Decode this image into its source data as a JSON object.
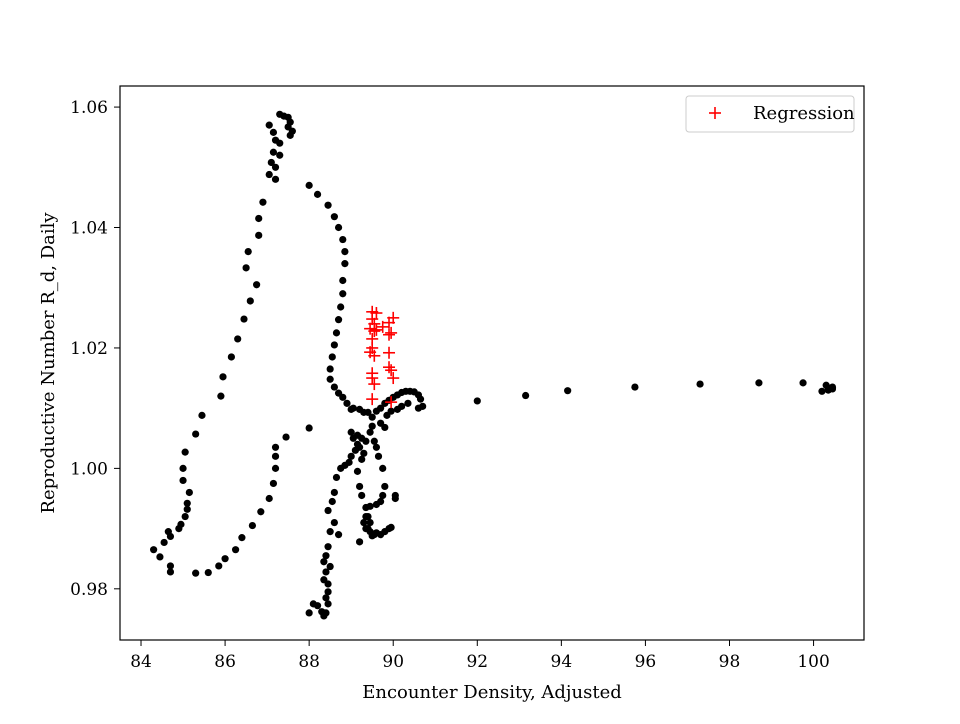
{
  "chart_data": {
    "type": "scatter",
    "xlabel": "Encounter Density, Adjusted",
    "ylabel": "Reproductive Number R_d, Daily",
    "xlim": [
      83.5,
      101.2
    ],
    "ylim": [
      0.9715,
      1.0635
    ],
    "xticks": [
      84,
      86,
      88,
      90,
      92,
      94,
      96,
      98,
      100
    ],
    "yticks": [
      0.98,
      1.0,
      1.02,
      1.04,
      1.06
    ],
    "ytick_labels": [
      "0.98",
      "1.00",
      "1.02",
      "1.04",
      "1.06"
    ],
    "grid": false,
    "legend_position": "top-right",
    "series": [
      {
        "marker": "dot",
        "color": "#000000",
        "points": [
          [
            87.3,
            1.0588
          ],
          [
            87.4,
            1.0585
          ],
          [
            87.5,
            1.0583
          ],
          [
            87.55,
            1.0575
          ],
          [
            87.5,
            1.0567
          ],
          [
            87.6,
            1.056
          ],
          [
            87.55,
            1.0553
          ],
          [
            87.05,
            1.057
          ],
          [
            87.15,
            1.0558
          ],
          [
            87.2,
            1.0545
          ],
          [
            87.3,
            1.054
          ],
          [
            87.15,
            1.0525
          ],
          [
            87.3,
            1.052
          ],
          [
            87.1,
            1.0508
          ],
          [
            87.2,
            1.05
          ],
          [
            87.05,
            1.0488
          ],
          [
            87.2,
            1.048
          ],
          [
            86.9,
            1.0442
          ],
          [
            86.8,
            1.0415
          ],
          [
            86.8,
            1.0387
          ],
          [
            86.55,
            1.036
          ],
          [
            86.5,
            1.0333
          ],
          [
            86.75,
            1.0305
          ],
          [
            86.6,
            1.0278
          ],
          [
            86.45,
            1.0248
          ],
          [
            86.3,
            1.0215
          ],
          [
            86.15,
            1.0185
          ],
          [
            85.95,
            1.0152
          ],
          [
            85.9,
            1.012
          ],
          [
            85.45,
            1.0088
          ],
          [
            85.3,
            1.0057
          ],
          [
            85.05,
            1.0027
          ],
          [
            85.0,
            1.0
          ],
          [
            85.0,
            0.998
          ],
          [
            85.15,
            0.996
          ],
          [
            85.1,
            0.9942
          ],
          [
            85.1,
            0.9932
          ],
          [
            85.05,
            0.992
          ],
          [
            84.95,
            0.9907
          ],
          [
            84.9,
            0.99
          ],
          [
            84.65,
            0.9895
          ],
          [
            84.7,
            0.9887
          ],
          [
            84.55,
            0.9877
          ],
          [
            84.3,
            0.9865
          ],
          [
            84.45,
            0.9853
          ],
          [
            84.7,
            0.9838
          ],
          [
            84.7,
            0.9828
          ],
          [
            85.3,
            0.9826
          ],
          [
            85.6,
            0.9827
          ],
          [
            85.85,
            0.9838
          ],
          [
            86.0,
            0.985
          ],
          [
            86.25,
            0.9865
          ],
          [
            86.4,
            0.9885
          ],
          [
            86.65,
            0.9905
          ],
          [
            86.85,
            0.9928
          ],
          [
            87.05,
            0.995
          ],
          [
            87.15,
            0.9975
          ],
          [
            87.2,
            1.0
          ],
          [
            87.2,
            1.002
          ],
          [
            87.2,
            1.0035
          ],
          [
            87.45,
            1.0052
          ],
          [
            88.0,
            1.0067
          ],
          [
            88.0,
            1.047
          ],
          [
            88.2,
            1.0455
          ],
          [
            88.45,
            1.0437
          ],
          [
            88.6,
            1.0418
          ],
          [
            88.7,
            1.04
          ],
          [
            88.8,
            1.038
          ],
          [
            88.85,
            1.036
          ],
          [
            88.85,
            1.034
          ],
          [
            88.8,
            1.0312
          ],
          [
            88.8,
            1.029
          ],
          [
            88.75,
            1.0268
          ],
          [
            88.7,
            1.0247
          ],
          [
            88.65,
            1.0225
          ],
          [
            88.6,
            1.0205
          ],
          [
            88.55,
            1.0185
          ],
          [
            88.5,
            1.0165
          ],
          [
            88.5,
            1.0148
          ],
          [
            88.6,
            1.0135
          ],
          [
            88.7,
            1.0125
          ],
          [
            88.8,
            1.0118
          ],
          [
            88.9,
            1.0108
          ],
          [
            89.05,
            1.01
          ],
          [
            89.2,
            1.0098
          ],
          [
            89.4,
            1.0093
          ],
          [
            89.6,
            1.0095
          ],
          [
            89.7,
            1.01
          ],
          [
            89.8,
            1.0108
          ],
          [
            89.9,
            1.0113
          ],
          [
            90.0,
            1.0118
          ],
          [
            90.1,
            1.0122
          ],
          [
            90.2,
            1.0126
          ],
          [
            90.3,
            1.0128
          ],
          [
            90.4,
            1.0128
          ],
          [
            90.5,
            1.0127
          ],
          [
            90.6,
            1.0122
          ],
          [
            90.65,
            1.0115
          ],
          [
            90.7,
            1.0103
          ],
          [
            90.6,
            1.01
          ],
          [
            90.35,
            1.0108
          ],
          [
            90.2,
            1.0103
          ],
          [
            90.1,
            1.0098
          ],
          [
            89.95,
            1.0095
          ],
          [
            89.85,
            1.0088
          ],
          [
            92.0,
            1.0112
          ],
          [
            93.15,
            1.0121
          ],
          [
            94.15,
            1.0129
          ],
          [
            95.75,
            1.0135
          ],
          [
            97.3,
            1.014
          ],
          [
            98.7,
            1.0142
          ],
          [
            99.75,
            1.0142
          ],
          [
            100.2,
            1.0128
          ],
          [
            100.3,
            1.0138
          ],
          [
            100.35,
            1.013
          ],
          [
            100.45,
            1.0135
          ],
          [
            100.45,
            1.0132
          ],
          [
            89.0,
            1.0098
          ],
          [
            89.3,
            1.0093
          ],
          [
            89.5,
            1.0085
          ],
          [
            89.7,
            1.0075
          ],
          [
            89.8,
            1.0068
          ],
          [
            89.5,
            1.007
          ],
          [
            89.45,
            1.006
          ],
          [
            89.55,
            1.0045
          ],
          [
            89.6,
            1.0035
          ],
          [
            89.65,
            1.002
          ],
          [
            89.75,
            1.0
          ],
          [
            89.8,
            0.997
          ],
          [
            89.75,
            0.9955
          ],
          [
            89.7,
            0.9945
          ],
          [
            90.05,
            0.9955
          ],
          [
            90.05,
            0.995
          ],
          [
            89.6,
            0.994
          ],
          [
            89.45,
            0.9937
          ],
          [
            89.35,
            0.992
          ],
          [
            89.45,
            0.991
          ],
          [
            89.4,
            0.99
          ],
          [
            89.45,
            0.9895
          ],
          [
            89.55,
            0.989
          ],
          [
            89.7,
            0.989
          ],
          [
            89.8,
            0.9895
          ],
          [
            89.9,
            0.99
          ],
          [
            89.95,
            0.9902
          ],
          [
            89.0,
            1.006
          ],
          [
            89.05,
            1.005
          ],
          [
            89.15,
            1.004
          ],
          [
            89.1,
            1.003
          ],
          [
            89.0,
            1.002
          ],
          [
            88.95,
            1.001
          ],
          [
            88.85,
            1.0005
          ],
          [
            88.75,
            1.0
          ],
          [
            88.65,
            0.9985
          ],
          [
            88.6,
            0.996
          ],
          [
            88.55,
            0.9945
          ],
          [
            88.45,
            0.993
          ],
          [
            88.6,
            0.991
          ],
          [
            88.5,
            0.9895
          ],
          [
            88.7,
            0.989
          ],
          [
            88.45,
            0.987
          ],
          [
            88.4,
            0.9855
          ],
          [
            88.35,
            0.9845
          ],
          [
            88.5,
            0.9837
          ],
          [
            88.4,
            0.9828
          ],
          [
            88.35,
            0.9815
          ],
          [
            88.45,
            0.9808
          ],
          [
            88.45,
            0.9795
          ],
          [
            88.4,
            0.9785
          ],
          [
            88.45,
            0.9775
          ],
          [
            88.3,
            0.9762
          ],
          [
            88.35,
            0.9755
          ],
          [
            88.4,
            0.976
          ],
          [
            88.2,
            0.9772
          ],
          [
            88.1,
            0.9775
          ],
          [
            88.0,
            0.976
          ],
          [
            89.15,
            1.0055
          ],
          [
            89.25,
            1.005
          ],
          [
            89.35,
            1.0045
          ],
          [
            89.2,
            1.0035
          ],
          [
            89.3,
            1.0025
          ],
          [
            89.25,
            1.0015
          ],
          [
            89.15,
            0.9995
          ],
          [
            89.2,
            0.997
          ],
          [
            89.25,
            0.9955
          ],
          [
            89.35,
            0.9935
          ],
          [
            89.4,
            0.992
          ],
          [
            89.3,
            0.991
          ],
          [
            89.35,
            0.99
          ],
          [
            89.5,
            0.9888
          ],
          [
            89.6,
            0.9893
          ],
          [
            89.2,
            0.9878
          ]
        ]
      },
      {
        "name": "Regression",
        "marker": "plus",
        "color": "#ff0000",
        "points": [
          [
            89.5,
            1.026
          ],
          [
            89.6,
            1.0258
          ],
          [
            89.5,
            1.0248
          ],
          [
            89.55,
            1.024
          ],
          [
            89.45,
            1.0232
          ],
          [
            89.55,
            1.0228
          ],
          [
            89.6,
            1.023
          ],
          [
            89.5,
            1.0215
          ],
          [
            89.5,
            1.02
          ],
          [
            89.45,
            1.0193
          ],
          [
            89.55,
            1.0187
          ],
          [
            89.5,
            1.0158
          ],
          [
            89.5,
            1.015
          ],
          [
            89.55,
            1.014
          ],
          [
            89.5,
            1.0115
          ],
          [
            89.75,
            1.0235
          ],
          [
            89.9,
            1.0242
          ],
          [
            90.0,
            1.025
          ],
          [
            89.95,
            1.0225
          ],
          [
            89.9,
            1.0222
          ],
          [
            89.9,
            1.0192
          ],
          [
            89.9,
            1.0168
          ],
          [
            89.95,
            1.0163
          ],
          [
            90.0,
            1.015
          ],
          [
            89.95,
            1.011
          ]
        ]
      }
    ]
  }
}
